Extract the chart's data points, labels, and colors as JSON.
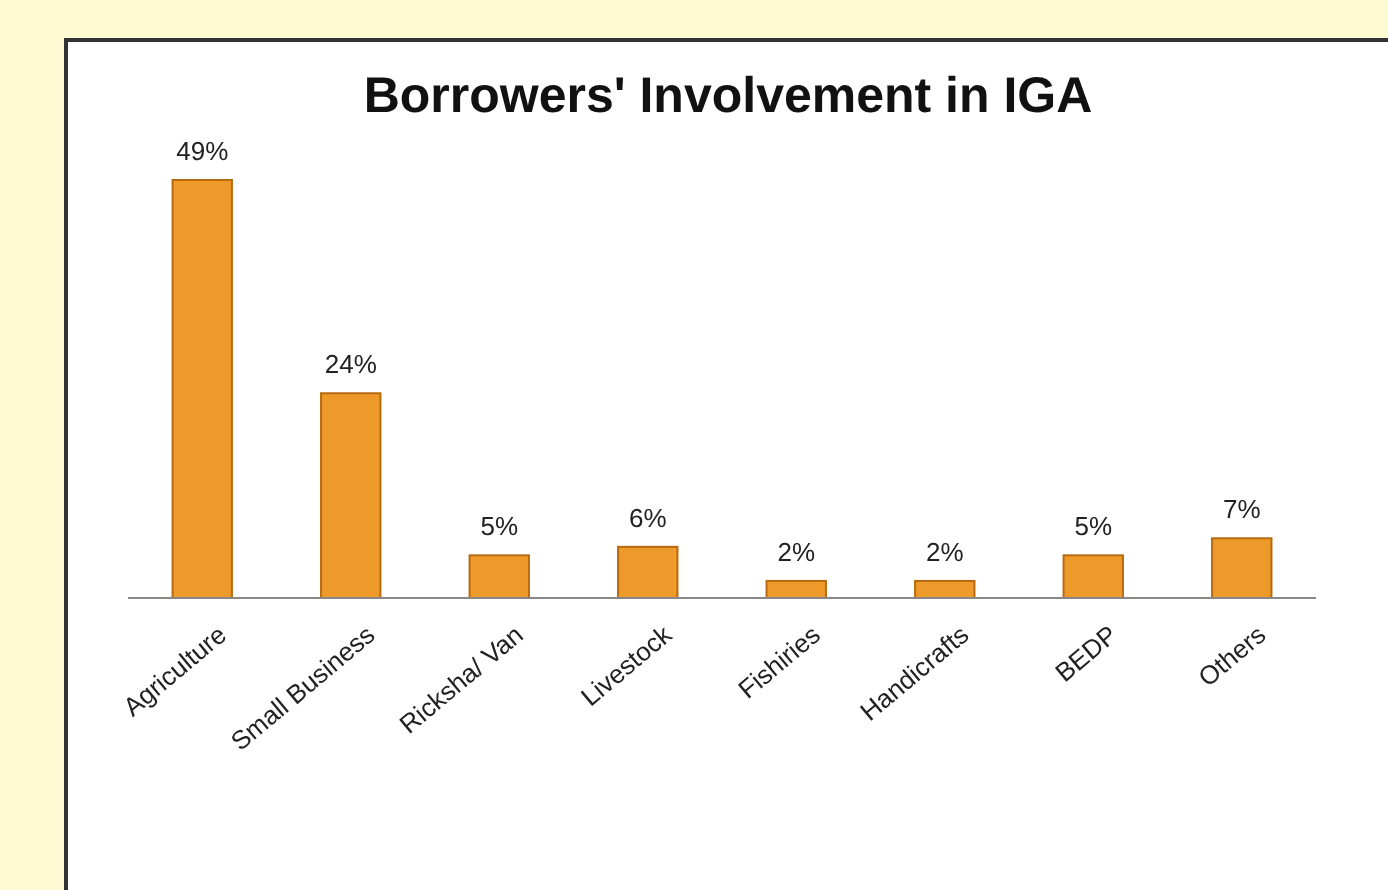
{
  "chart_data": {
    "type": "bar",
    "title": "Borrowers' Involvement in IGA",
    "categories": [
      "Agriculture",
      "Small Business",
      "Ricksha/ Van",
      "Livestock",
      "Fishiries",
      "Handicrafts",
      "BEDP",
      "Others"
    ],
    "values": [
      49,
      24,
      5,
      6,
      2,
      2,
      5,
      7
    ],
    "value_labels": [
      "49%",
      "24%",
      "5%",
      "6%",
      "2%",
      "2%",
      "5%",
      "7%"
    ],
    "color": "#ee9a2a"
  }
}
